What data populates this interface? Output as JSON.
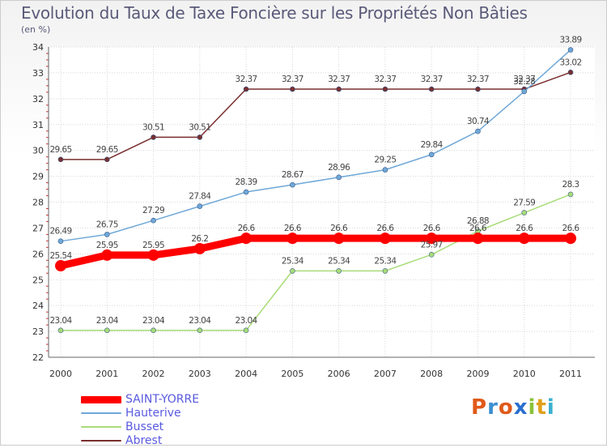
{
  "title": "Evolution du Taux de Taxe Foncière sur les Propriétés Non Bâties",
  "subtitle": "(en %)",
  "logo": {
    "letters": [
      "P",
      "r",
      "o",
      "x",
      "i",
      "t",
      "i"
    ],
    "colors": [
      "#e05a1a",
      "#3a8fd0",
      "#e05a1a",
      "#2a6fd0",
      "#8ac23a",
      "#e0a01a",
      "#3ab0d0"
    ]
  },
  "chart_data": {
    "type": "line",
    "x": [
      "2000",
      "2001",
      "2002",
      "2003",
      "2004",
      "2005",
      "2006",
      "2007",
      "2008",
      "2009",
      "2010",
      "2011"
    ],
    "ylim": [
      22,
      34
    ],
    "yticks": [
      "22",
      "23",
      "24",
      "25",
      "26",
      "27",
      "28",
      "29",
      "30",
      "31",
      "32",
      "33",
      "34"
    ],
    "grid": true,
    "legend_position": "bottom-left",
    "series": [
      {
        "name": "SAINT-YORRE",
        "color": "#ff0000",
        "width": 9,
        "values": [
          25.54,
          25.95,
          25.95,
          26.2,
          26.6,
          26.6,
          26.6,
          26.6,
          26.6,
          26.6,
          26.6,
          26.6
        ],
        "labels": [
          "25.54",
          "25.95",
          "25.95",
          "26.2",
          "26.6",
          "26.6",
          "26.6",
          "26.6",
          "26.6",
          "26.6",
          "26.6",
          "26.6"
        ]
      },
      {
        "name": "Hauterive",
        "color": "#6fa8d8",
        "width": 1.5,
        "values": [
          26.49,
          26.75,
          27.29,
          27.84,
          28.39,
          28.67,
          28.96,
          29.25,
          29.84,
          30.74,
          32.28,
          33.89
        ],
        "labels": [
          "26.49",
          "26.75",
          "27.29",
          "27.84",
          "28.39",
          "28.67",
          "28.96",
          "29.25",
          "29.84",
          "30.74",
          "32.28",
          "33.89"
        ]
      },
      {
        "name": "Busset",
        "color": "#a8dc78",
        "width": 1.5,
        "values": [
          23.04,
          23.04,
          23.04,
          23.04,
          23.04,
          25.34,
          25.34,
          25.34,
          25.97,
          26.88,
          27.59,
          28.3
        ],
        "labels": [
          "23.04",
          "23.04",
          "23.04",
          "23.04",
          "23.04",
          "25.34",
          "25.34",
          "25.34",
          "25.97",
          "26.88",
          "27.59",
          "28.3"
        ]
      },
      {
        "name": "Abrest",
        "color": "#7a2e2e",
        "width": 1.5,
        "values": [
          29.65,
          29.65,
          30.51,
          30.51,
          32.37,
          32.37,
          32.37,
          32.37,
          32.37,
          32.37,
          32.37,
          33.02
        ],
        "labels": [
          "29.65",
          "29.65",
          "30.51",
          "30.51",
          "32.37",
          "32.37",
          "32.37",
          "32.37",
          "32.37",
          "32.37",
          "32.37",
          "33.02"
        ]
      }
    ]
  }
}
